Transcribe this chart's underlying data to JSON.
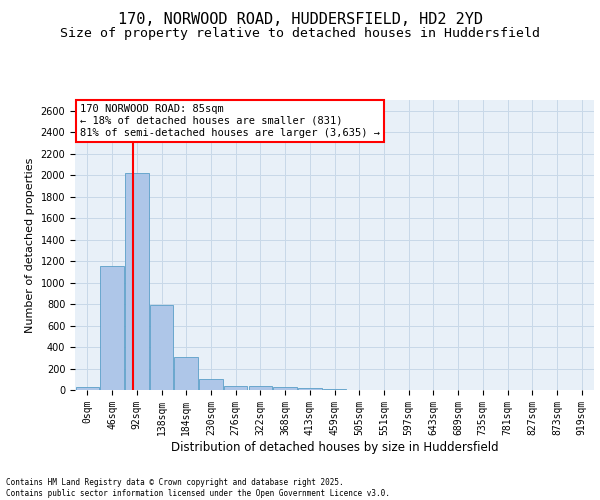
{
  "title1": "170, NORWOOD ROAD, HUDDERSFIELD, HD2 2YD",
  "title2": "Size of property relative to detached houses in Huddersfield",
  "xlabel": "Distribution of detached houses by size in Huddersfield",
  "ylabel": "Number of detached properties",
  "bin_labels": [
    "0sqm",
    "46sqm",
    "92sqm",
    "138sqm",
    "184sqm",
    "230sqm",
    "276sqm",
    "322sqm",
    "368sqm",
    "413sqm",
    "459sqm",
    "505sqm",
    "551sqm",
    "597sqm",
    "643sqm",
    "689sqm",
    "735sqm",
    "781sqm",
    "827sqm",
    "873sqm",
    "919sqm"
  ],
  "bar_values": [
    30,
    1150,
    2020,
    790,
    305,
    100,
    40,
    35,
    30,
    15,
    5,
    2,
    1,
    1,
    1,
    0,
    0,
    0,
    0,
    0,
    0
  ],
  "bar_color": "#aec6e8",
  "bar_edge_color": "#5a9fc8",
  "grid_color": "#c8d8e8",
  "bg_color": "#e8f0f8",
  "vline_color": "red",
  "annotation_text": "170 NORWOOD ROAD: 85sqm\n← 18% of detached houses are smaller (831)\n81% of semi-detached houses are larger (3,635) →",
  "ylim": [
    0,
    2700
  ],
  "yticks": [
    0,
    200,
    400,
    600,
    800,
    1000,
    1200,
    1400,
    1600,
    1800,
    2000,
    2200,
    2400,
    2600
  ],
  "footer": "Contains HM Land Registry data © Crown copyright and database right 2025.\nContains public sector information licensed under the Open Government Licence v3.0.",
  "title1_fontsize": 11,
  "title2_fontsize": 9.5,
  "ylabel_fontsize": 8,
  "xlabel_fontsize": 8.5,
  "tick_fontsize": 7,
  "annot_fontsize": 7.5,
  "footer_fontsize": 5.5
}
